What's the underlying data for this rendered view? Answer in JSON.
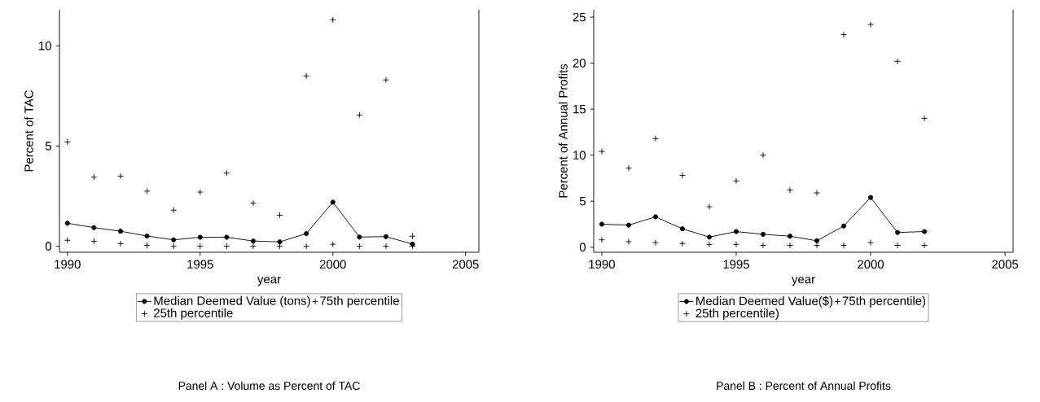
{
  "chart_data": [
    {
      "type": "line",
      "xlabel": "year",
      "ylabel": "Percent of TAC",
      "x": [
        1990,
        1991,
        1992,
        1993,
        1994,
        1995,
        1996,
        1997,
        1998,
        1999,
        2000,
        2001,
        2002,
        2003
      ],
      "series": [
        {
          "name": "Median Deemed Value (tons)",
          "marker": "circle",
          "color": "#000000",
          "values": [
            1.15,
            0.93,
            0.75,
            0.51,
            0.32,
            0.45,
            0.45,
            0.26,
            0.22,
            0.63,
            2.2,
            0.46,
            0.48,
            0.11
          ]
        },
        {
          "name": "75th percentile",
          "type": "scatter",
          "marker": "cross",
          "color": "#000000",
          "values": [
            5.2,
            3.45,
            3.5,
            2.75,
            1.8,
            2.7,
            3.65,
            2.15,
            1.55,
            8.5,
            11.3,
            6.55,
            8.3,
            0.5
          ]
        },
        {
          "name": "25th percentile",
          "type": "scatter",
          "marker": "cross",
          "color": "#000000",
          "values": [
            0.3,
            0.25,
            0.13,
            0.05,
            0,
            0,
            0,
            0,
            0,
            0,
            0.1,
            0,
            0,
            0
          ]
        }
      ],
      "xlim": [
        1989.7,
        2005.5
      ],
      "ylim": [
        -0.3,
        11.8
      ],
      "xticks": [
        1990,
        1995,
        2000,
        2005
      ],
      "yticks": [
        0,
        5,
        10
      ],
      "legend": "bottom",
      "annotations": [
        "Panel A : Volume as Percent of TAC"
      ]
    },
    {
      "type": "line",
      "xlabel": "year",
      "ylabel": "Percent of Annual Profits",
      "x": [
        1990,
        1991,
        1992,
        1993,
        1994,
        1995,
        1996,
        1997,
        1998,
        1999,
        2000,
        2001,
        2002
      ],
      "series": [
        {
          "name": "Median Deemed Value($)",
          "marker": "circle",
          "color": "#000000",
          "values": [
            2.5,
            2.4,
            3.3,
            2.0,
            1.1,
            1.7,
            1.4,
            1.2,
            0.7,
            2.3,
            5.4,
            1.6,
            1.7
          ]
        },
        {
          "name": "75th percentile)",
          "type": "scatter",
          "marker": "cross",
          "color": "#000000",
          "values": [
            10.4,
            8.6,
            11.8,
            7.8,
            4.4,
            7.2,
            10.0,
            6.2,
            5.9,
            23.1,
            24.2,
            20.2,
            14.0
          ]
        },
        {
          "name": "25th percentile)",
          "type": "scatter",
          "marker": "cross",
          "color": "#000000",
          "values": [
            0.8,
            0.6,
            0.5,
            0.4,
            0.3,
            0.3,
            0.2,
            0.2,
            0.2,
            0.2,
            0.5,
            0.2,
            0.2
          ]
        }
      ],
      "xlim": [
        1989.7,
        2005.3
      ],
      "ylim": [
        -0.55,
        25.8
      ],
      "xticks": [
        1990,
        1995,
        2000,
        2005
      ],
      "yticks": [
        0,
        5,
        10,
        15,
        20,
        25
      ],
      "legend": "bottom",
      "annotations": [
        "Panel B : Percent of Annual Profits"
      ]
    }
  ]
}
